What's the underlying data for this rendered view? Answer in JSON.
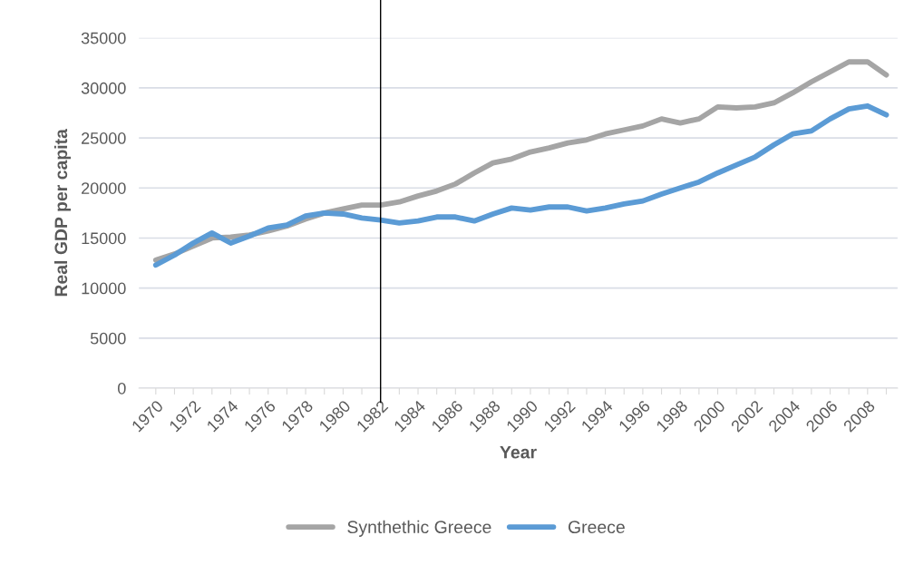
{
  "chart_data": {
    "type": "line",
    "xlabel": "Year",
    "ylabel": "Real GDP per capita",
    "categories": [
      "1970",
      null,
      "1972",
      null,
      "1974",
      null,
      "1976",
      null,
      "1978",
      null,
      "1980",
      null,
      "1982",
      null,
      "1984",
      null,
      "1986",
      null,
      "1988",
      null,
      "1990",
      null,
      "1992",
      null,
      "1994",
      null,
      "1996",
      null,
      "1998",
      null,
      "2000",
      null,
      "2002",
      null,
      "2004",
      null,
      "2006",
      null,
      "2008",
      null
    ],
    "series": [
      {
        "name": "Synthethic Greece",
        "color": "#a5a5a5",
        "values": [
          12800,
          13400,
          14200,
          15000,
          15100,
          15300,
          15700,
          16200,
          16900,
          17500,
          17900,
          18300,
          18300,
          18600,
          19200,
          19700,
          20400,
          21500,
          22500,
          22900,
          23600,
          24000,
          24500,
          24800,
          25400,
          25800,
          26200,
          26900,
          26500,
          26900,
          28100,
          28000,
          28100,
          28500,
          29500,
          30600,
          31600,
          32600,
          32600,
          31300
        ]
      },
      {
        "name": "Greece",
        "color": "#5b9bd5",
        "values": [
          12300,
          13300,
          14500,
          15500,
          14500,
          15200,
          16000,
          16300,
          17200,
          17500,
          17400,
          17000,
          16800,
          16500,
          16700,
          17100,
          17100,
          16700,
          17400,
          18000,
          17800,
          18100,
          18100,
          17700,
          18000,
          18400,
          18700,
          19400,
          20000,
          20600,
          21500,
          22300,
          23100,
          24300,
          25400,
          25700,
          26900,
          27900,
          28200,
          27300
        ]
      }
    ],
    "ylim": [
      0,
      35000
    ],
    "yticks": [
      0,
      5000,
      10000,
      15000,
      20000,
      25000,
      30000,
      35000
    ],
    "ref_lines": [
      {
        "axis": "x",
        "value": "1982",
        "color": "#000000"
      }
    ],
    "grid": "y",
    "legend": "bottom",
    "marker": "none",
    "line_style": "solid"
  }
}
